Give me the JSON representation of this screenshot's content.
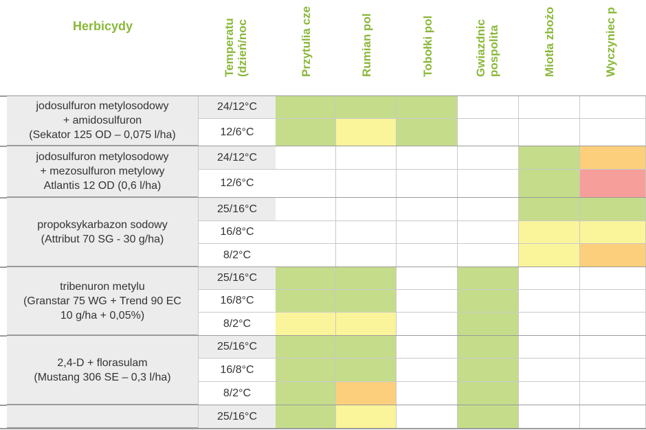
{
  "header": {
    "herbicides_label": "Herbicydy",
    "columns": [
      "Temperatu\n(dzień/noc",
      "Przytulia cze",
      "Rumian pol",
      "Tobołki pol",
      "Gwiazdnic\npospolita",
      "Miotła zbożo",
      "Wyczyniec p"
    ]
  },
  "colors": {
    "green": "#c5dc8b",
    "yellow": "#faf49a",
    "orange": "#fccf7c",
    "red": "#f59e9a",
    "white": "#ffffff"
  },
  "groups": [
    {
      "name": "jodosulfuron metylosodowy\n+ amidosulfuron\n(Sekator 125 OD – 0,075 l/ha)",
      "rows": [
        {
          "temp": "24/12°C",
          "cells": [
            "green",
            "green",
            "green",
            "white",
            "white",
            "white"
          ]
        },
        {
          "temp": "12/6°C",
          "cells": [
            "green",
            "yellow",
            "green",
            "white",
            "white",
            "white"
          ]
        }
      ]
    },
    {
      "name": "jodosulfuron metylosodowy\n+ mezosulfuron metylowy\nAtlantis 12 OD (0,6 l/ha)",
      "rows": [
        {
          "temp": "24/12°C",
          "cells": [
            "white",
            "white",
            "white",
            "white",
            "green",
            "orange"
          ]
        },
        {
          "temp": "12/6°C",
          "cells": [
            "white",
            "white",
            "white",
            "white",
            "green",
            "red"
          ]
        }
      ]
    },
    {
      "name": "propoksykarbazon sodowy\n(Attribut 70 SG - 30 g/ha)",
      "rows": [
        {
          "temp": "25/16°C",
          "cells": [
            "white",
            "white",
            "white",
            "white",
            "green",
            "green"
          ]
        },
        {
          "temp": "16/8°C",
          "cells": [
            "white",
            "white",
            "white",
            "white",
            "yellow",
            "yellow"
          ]
        },
        {
          "temp": "8/2°C",
          "cells": [
            "white",
            "white",
            "white",
            "white",
            "yellow",
            "orange"
          ]
        }
      ]
    },
    {
      "name": "tribenuron metylu\n(Granstar 75 WG + Trend 90 EC\n10 g/ha + 0,05%)",
      "rows": [
        {
          "temp": "25/16°C",
          "cells": [
            "green",
            "green",
            "white",
            "green",
            "white",
            "white"
          ]
        },
        {
          "temp": "16/8°C",
          "cells": [
            "green",
            "green",
            "white",
            "green",
            "white",
            "white"
          ]
        },
        {
          "temp": "8/2°C",
          "cells": [
            "yellow",
            "yellow",
            "white",
            "green",
            "white",
            "white"
          ]
        }
      ]
    },
    {
      "name": "2,4-D + florasulam\n(Mustang 306 SE – 0,3 l/ha)",
      "rows": [
        {
          "temp": "25/16°C",
          "cells": [
            "green",
            "green",
            "white",
            "green",
            "white",
            "white"
          ]
        },
        {
          "temp": "16/8°C",
          "cells": [
            "green",
            "green",
            "white",
            "green",
            "white",
            "white"
          ]
        },
        {
          "temp": "8/2°C",
          "cells": [
            "green",
            "orange",
            "white",
            "green",
            "white",
            "white"
          ]
        }
      ]
    },
    {
      "name": "",
      "rows": [
        {
          "temp": "25/16°C",
          "cells": [
            "green",
            "yellow",
            "white",
            "green",
            "white",
            "white"
          ]
        }
      ]
    }
  ]
}
